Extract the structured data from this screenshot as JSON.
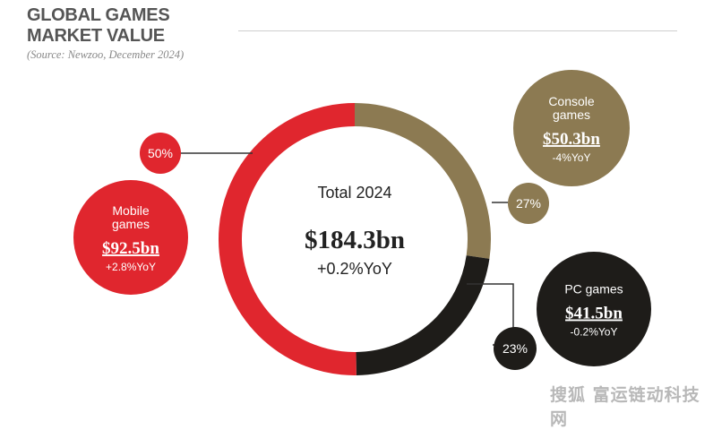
{
  "header": {
    "title_line1": "GLOBAL GAMES",
    "title_line2": "MARKET VALUE",
    "source": "(Source: Newzoo, December 2024)"
  },
  "watermark": "搜狐 富运链动科技网",
  "colors": {
    "mobile": "#e0262e",
    "console": "#8c7a52",
    "pc": "#1e1c19",
    "leader": "#333333",
    "title": "#555555"
  },
  "chart_data": {
    "type": "pie",
    "style": "donut",
    "center": {
      "label": "Total 2024",
      "value": "$184.3bn",
      "change": "+0.2%YoY"
    },
    "categories": [
      "Mobile games",
      "Console games",
      "PC games"
    ],
    "values": [
      92.5,
      50.3,
      41.5
    ],
    "shares": [
      50,
      27,
      23
    ],
    "segments": [
      {
        "name_lines": [
          "Mobile",
          "games"
        ],
        "value_label": "$92.5bn",
        "change": "+2.8%YoY",
        "share": 50,
        "share_label": "50%",
        "color": "#e0262e"
      },
      {
        "name_lines": [
          "Console",
          "games"
        ],
        "value_label": "$50.3bn",
        "change": "-4%YoY",
        "share": 27,
        "share_label": "27%",
        "color": "#8c7a52"
      },
      {
        "name_lines": [
          "PC games"
        ],
        "value_label": "$41.5bn",
        "change": "-0.2%YoY",
        "share": 23,
        "share_label": "23%",
        "color": "#1e1c19"
      }
    ]
  }
}
